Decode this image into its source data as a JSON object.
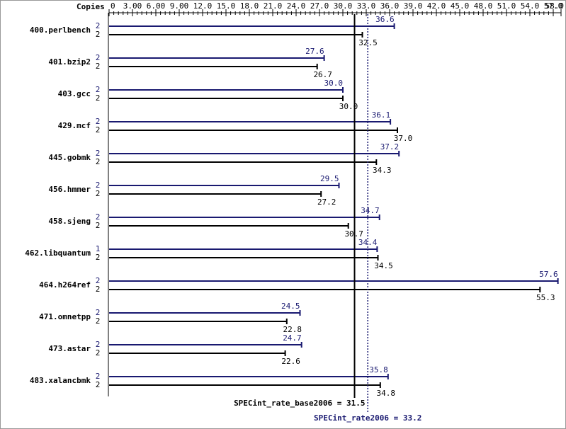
{
  "chart_data": {
    "type": "bar",
    "orientation": "horizontal",
    "copies_label": "Copies",
    "categories": [
      "400.perlbench",
      "401.bzip2",
      "403.gcc",
      "429.mcf",
      "445.gobmk",
      "456.hmmer",
      "458.sjeng",
      "462.libquantum",
      "464.h264ref",
      "471.omnetpp",
      "473.astar",
      "483.xalancbmk"
    ],
    "series": [
      {
        "color": "#191970",
        "copies": [
          2,
          2,
          2,
          2,
          2,
          2,
          2,
          1,
          2,
          2,
          2,
          2
        ],
        "values": [
          36.6,
          27.6,
          30.0,
          36.1,
          37.2,
          29.5,
          34.7,
          34.4,
          57.6,
          24.5,
          24.7,
          35.8
        ],
        "value_labels": [
          "36.6",
          "27.6",
          "30.0",
          "36.1",
          "37.2",
          "29.5",
          "34.7",
          "34.4",
          "57.6",
          "24.5",
          "24.7",
          "35.8"
        ]
      },
      {
        "color": "#000000",
        "copies": [
          2,
          2,
          2,
          2,
          2,
          2,
          2,
          2,
          2,
          2,
          2,
          2
        ],
        "values": [
          32.5,
          26.7,
          30.0,
          37.0,
          34.3,
          27.2,
          30.7,
          34.5,
          55.3,
          22.8,
          22.6,
          34.8
        ],
        "value_labels": [
          "32.5",
          "26.7",
          "30.0",
          "37.0",
          "34.3",
          "27.2",
          "30.7",
          "34.5",
          "55.3",
          "22.8",
          "22.6",
          "34.8"
        ]
      }
    ],
    "xlim": [
      0,
      58
    ],
    "xticks": [
      0,
      {
        "value": 3,
        "label": "3.00"
      },
      {
        "value": 6,
        "label": "6.00"
      },
      {
        "value": 9,
        "label": "9.00"
      },
      {
        "value": 12,
        "label": "12.0"
      },
      {
        "value": 15,
        "label": "15.0"
      },
      {
        "value": 18,
        "label": "18.0"
      },
      {
        "value": 21,
        "label": "21.0"
      },
      {
        "value": 24,
        "label": "24.0"
      },
      {
        "value": 27,
        "label": "27.0"
      },
      {
        "value": 30,
        "label": "30.0"
      },
      {
        "value": 33,
        "label": "33.0"
      },
      {
        "value": 36,
        "label": "36.0"
      },
      {
        "value": 39,
        "label": "39.0"
      },
      {
        "value": 42,
        "label": "42.0"
      },
      {
        "value": 45,
        "label": "45.0"
      },
      {
        "value": 48,
        "label": "48.0"
      },
      {
        "value": 51,
        "label": "51.0"
      },
      {
        "value": 54,
        "label": "54.0"
      },
      {
        "value": 57,
        "label": "57.0"
      },
      {
        "value": 58,
        "label": "58.0"
      }
    ],
    "reference_lines": [
      {
        "label": "SPECint_rate_base2006 = 31.5",
        "value": 31.5,
        "color": "#000000",
        "style": "solid"
      },
      {
        "label": "SPECint_rate2006 = 33.2",
        "value": 33.2,
        "color": "#191970",
        "style": "dotted"
      }
    ]
  }
}
